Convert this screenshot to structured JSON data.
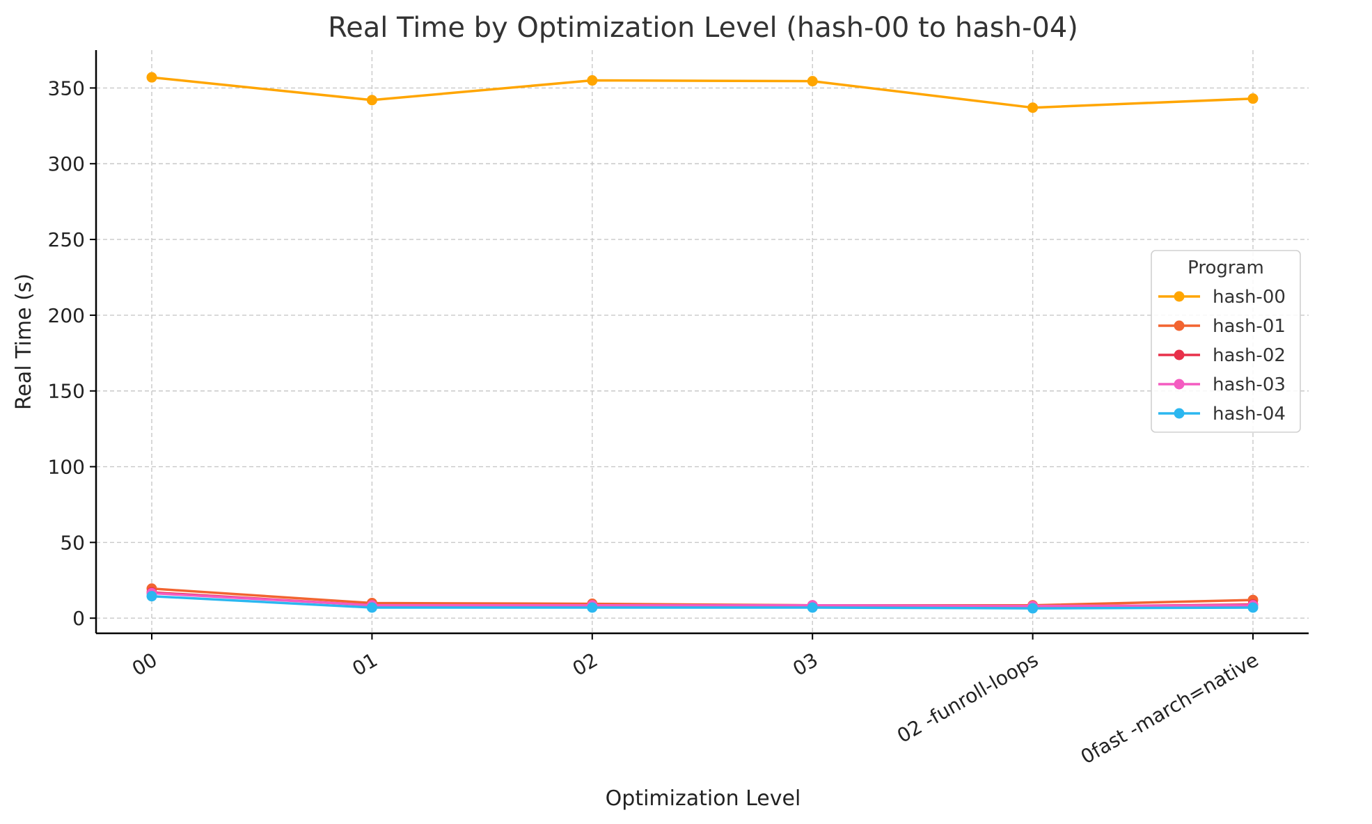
{
  "chart_data": {
    "type": "line",
    "title": "Real Time by Optimization Level (hash-00 to hash-04)",
    "xlabel": "Optimization Level",
    "ylabel": "Real Time (s)",
    "categories": [
      "00",
      "01",
      "02",
      "03",
      "02 -funroll-loops",
      "0fast -march=native"
    ],
    "ylim": [
      -10,
      375
    ],
    "yticks": [
      0,
      50,
      100,
      150,
      200,
      250,
      300,
      350
    ],
    "grid": true,
    "legend": {
      "title": "Program",
      "placement": "center-right"
    },
    "series": [
      {
        "name": "hash-00",
        "color": "#FFA500",
        "values": [
          357,
          342,
          355,
          354.5,
          337,
          343
        ]
      },
      {
        "name": "hash-01",
        "color": "#F26430",
        "values": [
          19.5,
          10,
          9.5,
          8.5,
          8.5,
          12
        ]
      },
      {
        "name": "hash-02",
        "color": "#E8304A",
        "values": [
          17,
          8.5,
          8,
          8,
          7.5,
          9
        ]
      },
      {
        "name": "hash-03",
        "color": "#F45BC1",
        "values": [
          16.5,
          8.5,
          8.5,
          8.5,
          8,
          8.5
        ]
      },
      {
        "name": "hash-04",
        "color": "#2BB7F0",
        "values": [
          14.5,
          7,
          7,
          7,
          6.5,
          7
        ]
      }
    ]
  }
}
